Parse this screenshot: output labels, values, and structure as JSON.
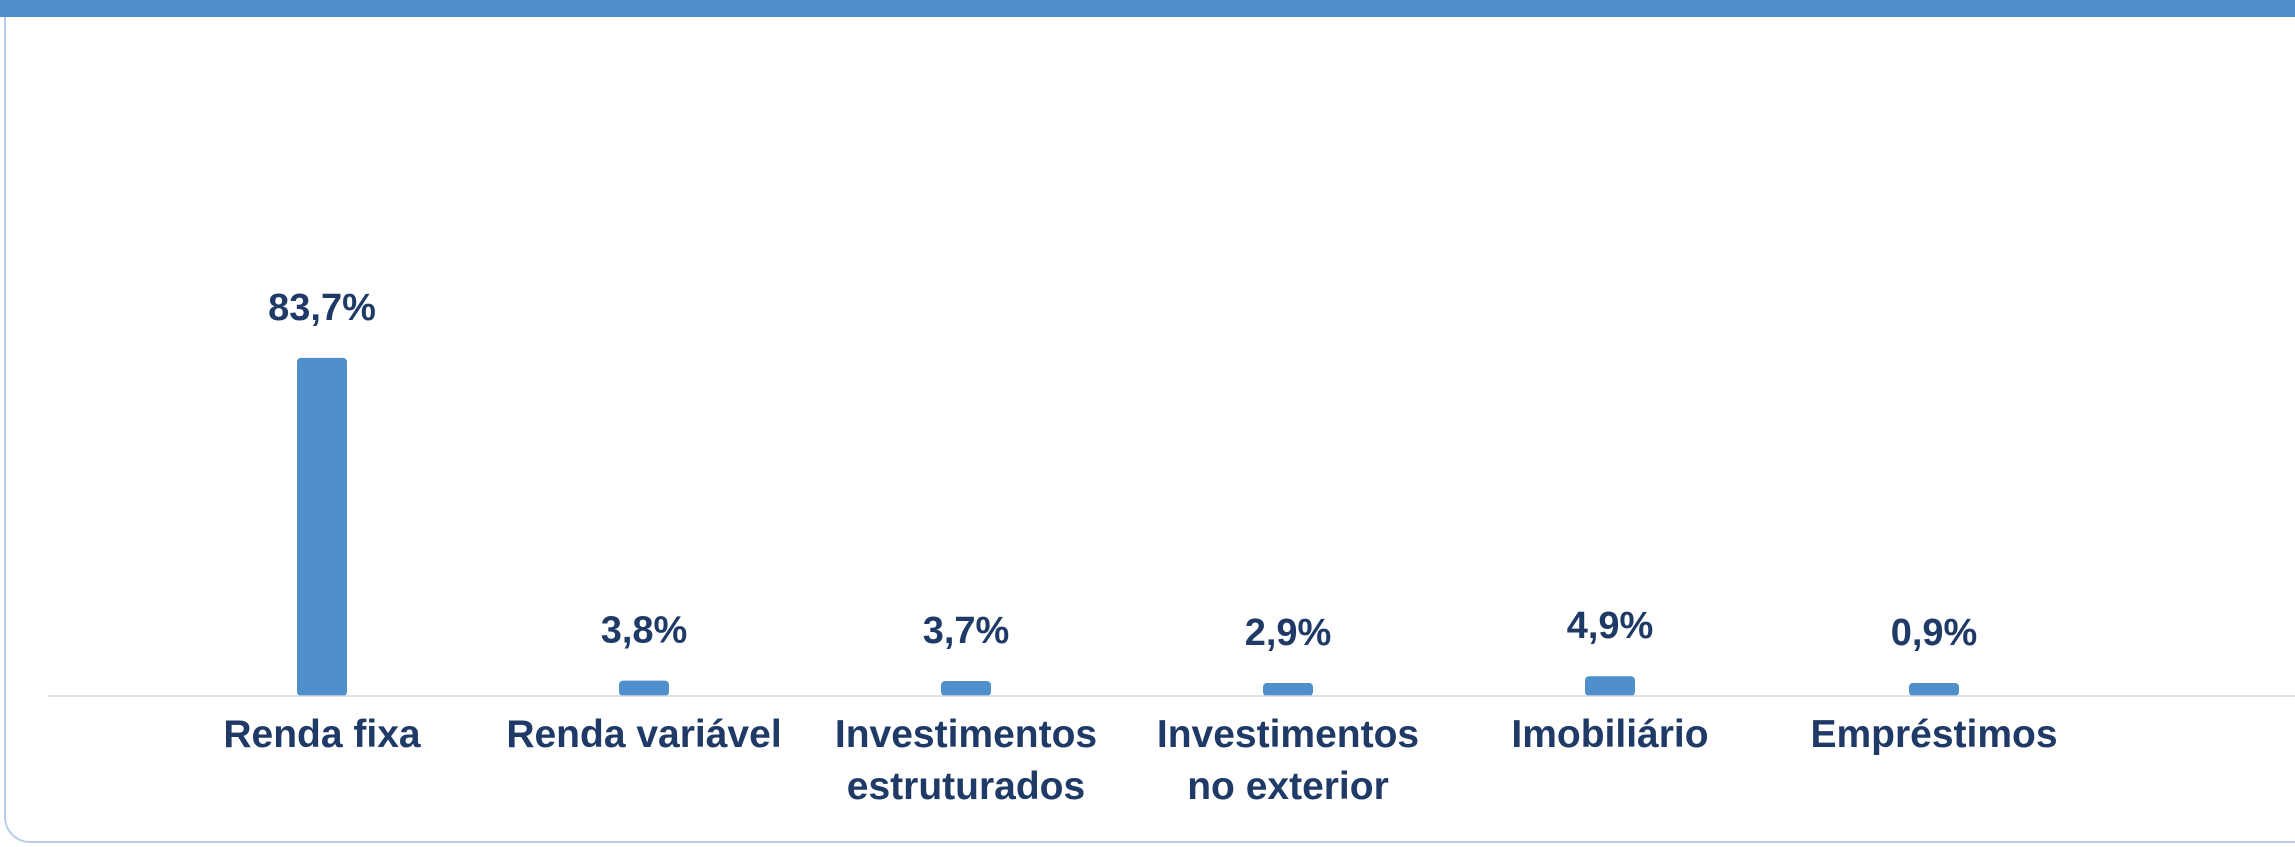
{
  "chart_data": {
    "type": "bar",
    "categories": [
      [
        "Renda fixa"
      ],
      [
        "Renda variável"
      ],
      [
        "Investimentos",
        "estruturados"
      ],
      [
        "Investimentos",
        "no exterior"
      ],
      [
        "Imobiliário"
      ],
      [
        "Empréstimos"
      ]
    ],
    "values": [
      83.7,
      3.8,
      3.7,
      2.9,
      4.9,
      0.9
    ],
    "value_labels": [
      "83,7%",
      "3,8%",
      "3,7%",
      "2,9%",
      "4,9%",
      "0,9%"
    ],
    "unit": "%",
    "ylim": [
      0,
      100
    ],
    "grid": false,
    "legend": "none",
    "colors": {
      "bar": "#4e8fcc",
      "text": "#1f3a66",
      "band": "#4e8fcc",
      "border": "#b9cde4"
    }
  }
}
